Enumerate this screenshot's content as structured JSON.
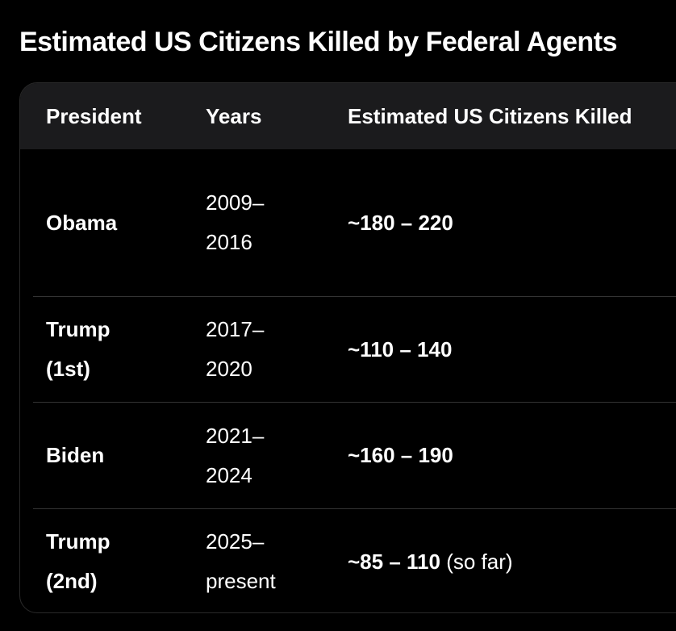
{
  "title": "Estimated US Citizens Killed by Federal Agents",
  "table": {
    "headers": {
      "president": "President",
      "years": "Years",
      "estimate": "Estimated US Citizens Killed"
    },
    "rows": [
      {
        "president_line1": "Obama",
        "president_line2": "",
        "years_line1": "2009–",
        "years_line2": "2016",
        "estimate": "~180 – 220",
        "note": ""
      },
      {
        "president_line1": "Trump",
        "president_line2": "(1st)",
        "years_line1": "2017–",
        "years_line2": "2020",
        "estimate": "~110 – 140",
        "note": ""
      },
      {
        "president_line1": "Biden",
        "president_line2": "",
        "years_line1": "2021–",
        "years_line2": "2024",
        "estimate": "~160 – 190",
        "note": ""
      },
      {
        "president_line1": "Trump",
        "president_line2": "(2nd)",
        "years_line1": "2025–",
        "years_line2": "present",
        "estimate": "~85 – 110",
        "note": "(so far)"
      }
    ]
  }
}
